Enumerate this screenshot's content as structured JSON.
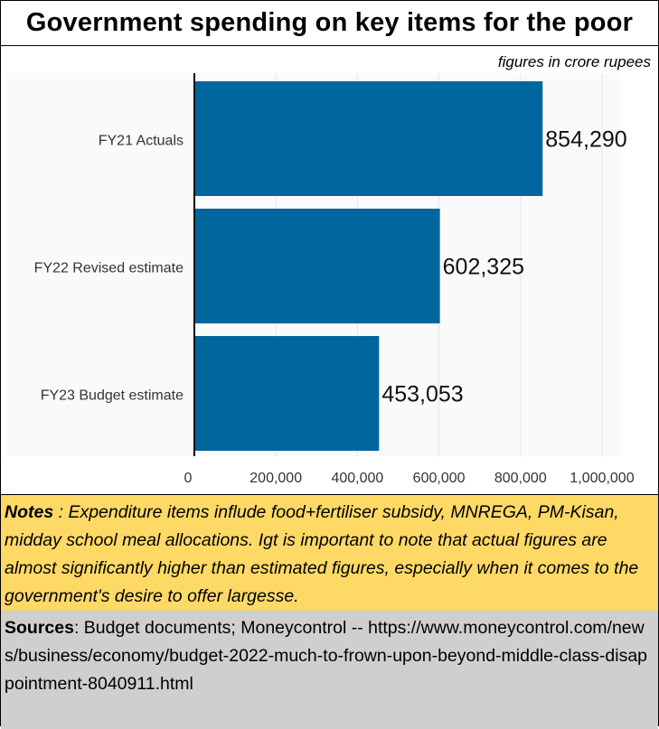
{
  "header": {
    "title": "Government spending on key items for the poor",
    "units_note": "figures in crore rupees"
  },
  "chart_data": {
    "type": "bar",
    "orientation": "horizontal",
    "categories": [
      "FY21 Actuals",
      "FY22 Revised estimate",
      "FY23 Budget estimate"
    ],
    "values": [
      854290,
      602325,
      453053
    ],
    "value_labels": [
      "854,290",
      "602,325",
      "453,053"
    ],
    "xlim": [
      0,
      1000000
    ],
    "xticks": [
      0,
      200000,
      400000,
      600000,
      800000,
      1000000
    ],
    "xtick_labels": [
      "0",
      "200,000",
      "400,000",
      "600,000",
      "800,000",
      "1,000,000"
    ],
    "bar_color": "#00669e",
    "grid": true
  },
  "notes": {
    "label": "Notes",
    "text": " : Expenditure items influde food+fertiliser subsidy, MNREGA, PM-Kisan, midday school meal allocations.  Igt is important to note that actual figures are almost significantly higher than estimated figures, especially when it comes to the government's desire to offer largesse."
  },
  "sources": {
    "label": "Sources",
    "text": ": Budget documents; Moneycontrol -- https://www.moneycontrol.com/news/business/economy/budget-2022-much-to-frown-upon-beyond-middle-class-disappointment-8040911.html"
  },
  "colors": {
    "notes_bg": "#ffd966",
    "sources_bg": "#d0cece",
    "bar": "#00669e"
  }
}
